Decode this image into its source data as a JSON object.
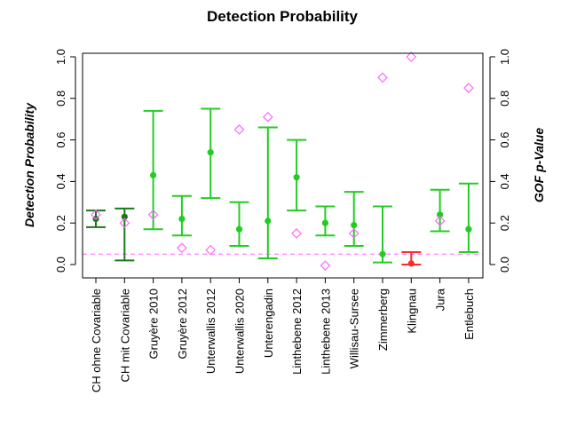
{
  "chart_data": {
    "type": "scatter",
    "title": "Detection Probability",
    "ylabel": "Detection Probability",
    "y2label": "GOF p-Value",
    "ylim": [
      0,
      1
    ],
    "y2lim": [
      0,
      1
    ],
    "yticks": [
      "0.0",
      "0.2",
      "0.4",
      "0.6",
      "0.8",
      "1.0"
    ],
    "y2ticks": [
      "0.0",
      "0.2",
      "0.4",
      "0.6",
      "0.8",
      "1.0"
    ],
    "reference_line": {
      "value": 0.05,
      "axis": "right",
      "style": "dashed",
      "color": "#ff66ff"
    },
    "categories": [
      "CH ohne Covariable",
      "CH mit Covariable",
      "Gruyère 2010",
      "Gruyère 2012",
      "Unterwallis 2012",
      "Unterwallis 2020",
      "Unterengadin",
      "Linthebene 2012",
      "Linthebene 2013",
      "Willisau-Sursee",
      "Zimmerberg",
      "Klingnau",
      "Jura",
      "Entlebuch"
    ],
    "series": [
      {
        "role": "detection_probability",
        "axis": "left",
        "estimate": [
          0.22,
          0.23,
          0.43,
          0.22,
          0.54,
          0.17,
          0.21,
          0.42,
          0.2,
          0.19,
          0.05,
          0.005,
          0.24,
          0.17
        ],
        "lower": [
          0.18,
          0.02,
          0.17,
          0.14,
          0.32,
          0.09,
          0.03,
          0.26,
          0.14,
          0.09,
          0.01,
          0.0,
          0.16,
          0.06
        ],
        "upper": [
          0.26,
          0.27,
          0.74,
          0.33,
          0.75,
          0.3,
          0.66,
          0.6,
          0.28,
          0.35,
          0.28,
          0.06,
          0.36,
          0.39
        ],
        "colors": [
          "#1a7a1a",
          "#1a7a1a",
          "#22cc22",
          "#22cc22",
          "#22cc22",
          "#22cc22",
          "#22cc22",
          "#22cc22",
          "#22cc22",
          "#22cc22",
          "#22cc22",
          "#ff2a2a",
          "#22cc22",
          "#22cc22"
        ]
      },
      {
        "role": "gof_p_value",
        "axis": "right",
        "marker": "diamond",
        "color": "#ff66ff",
        "values": [
          0.24,
          0.2,
          0.24,
          0.08,
          0.07,
          0.65,
          0.71,
          0.15,
          -0.005,
          0.15,
          0.9,
          1.0,
          0.21,
          0.85
        ]
      }
    ]
  }
}
